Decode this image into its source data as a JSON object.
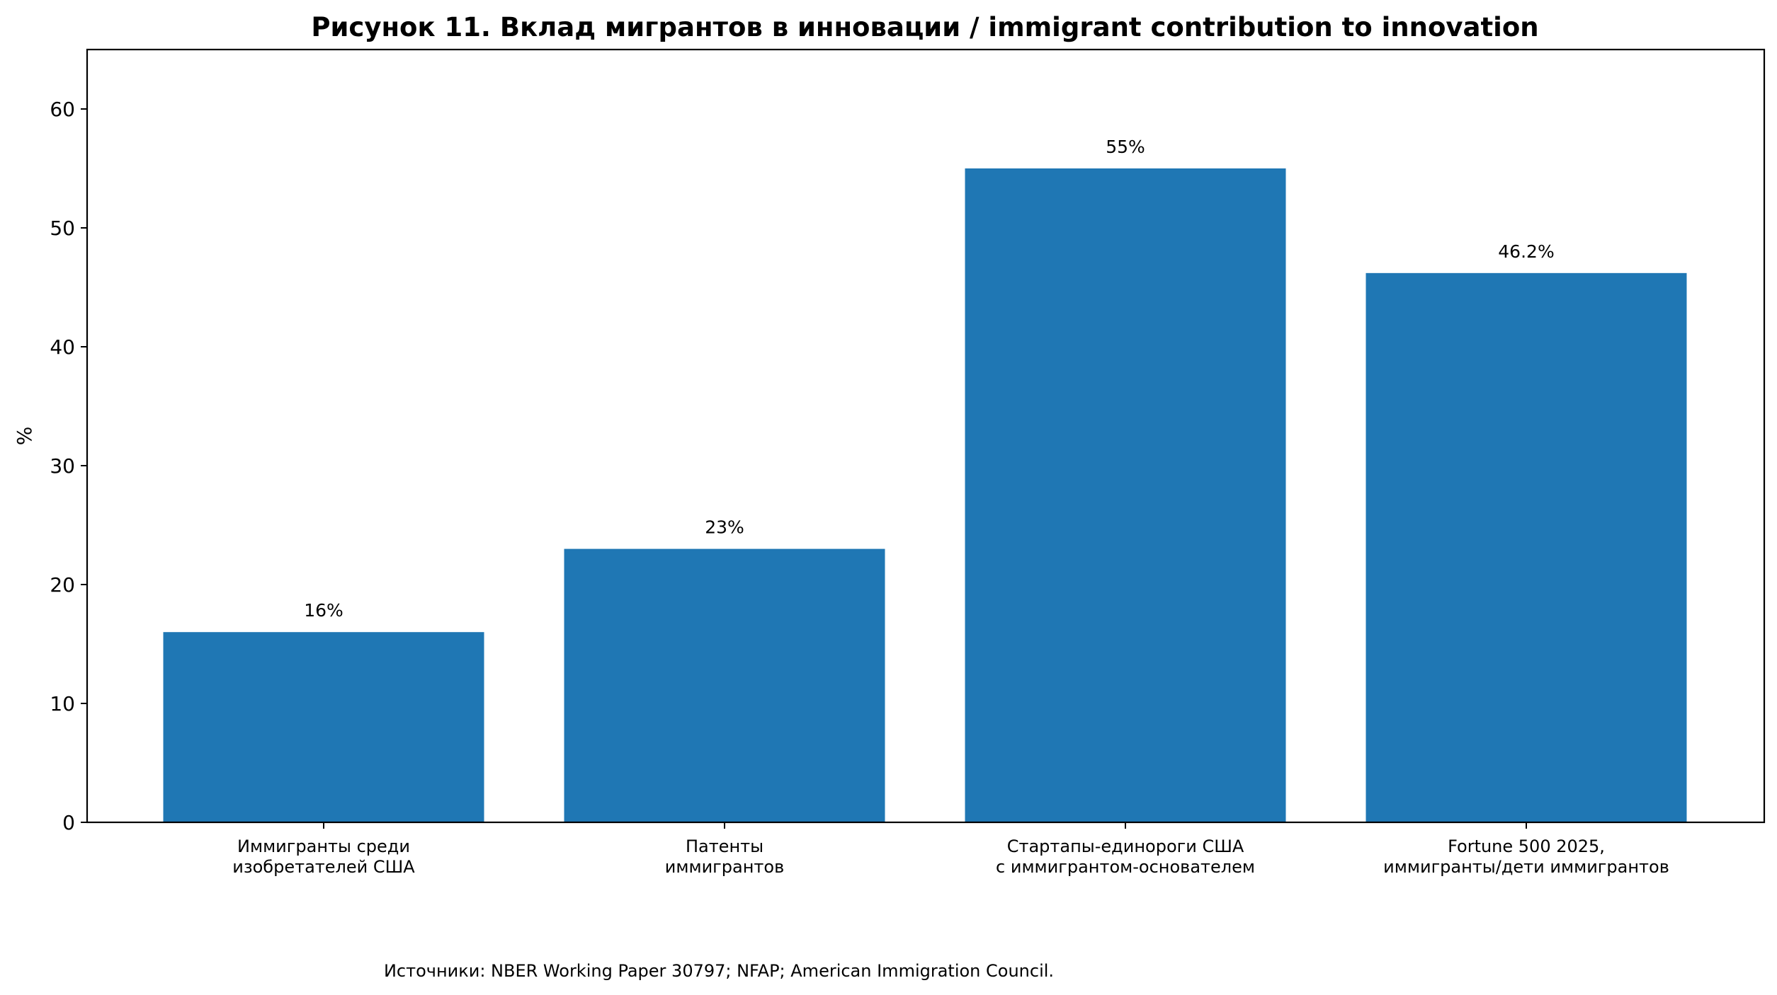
{
  "chart_data": {
    "type": "bar",
    "title": "Рисунок 11. Вклад мигрантов в инновации / immigrant contribution to innovation",
    "xlabel": "",
    "ylabel": "%",
    "ylim": [
      0,
      65
    ],
    "yticks": [
      "0",
      "10",
      "20",
      "30",
      "40",
      "50",
      "60"
    ],
    "grid": false,
    "bar_color": "#1f77b4",
    "categories": [
      [
        "Иммигранты среди",
        "изобретателей США"
      ],
      [
        "Патенты",
        "иммигрантов"
      ],
      [
        "Стартапы-единороги США",
        "с иммигрантом-основателем"
      ],
      [
        "Fortune 500 2025,",
        "иммигранты/дети иммигрантов"
      ]
    ],
    "values": [
      16,
      23,
      55,
      46.2
    ],
    "value_labels": [
      "16%",
      "23%",
      "55%",
      "46.2%"
    ],
    "source_note": "Источники: NBER Working Paper 30797; NFAP; American Immigration Council."
  }
}
